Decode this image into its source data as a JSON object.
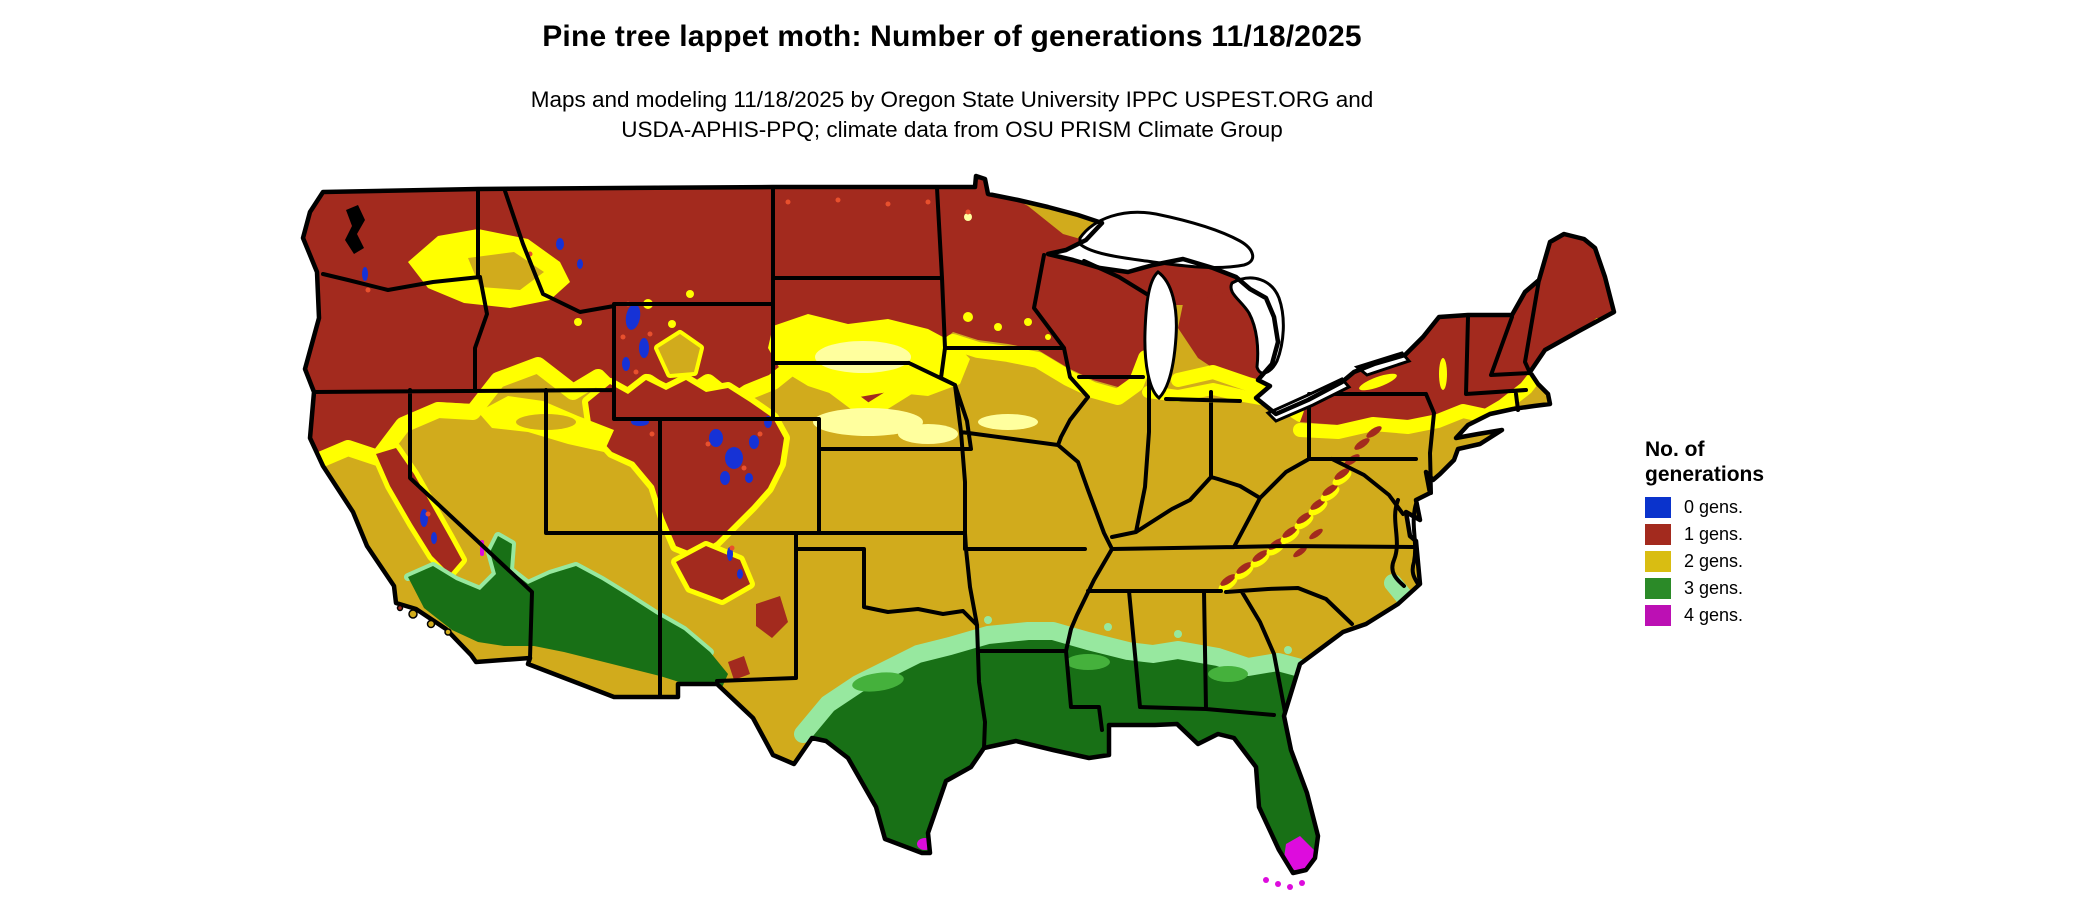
{
  "header": {
    "title": "Pine tree lappet moth: Number of generations 11/18/2025",
    "subtitle1": "Maps and modeling 11/18/2025 by Oregon State University IPPC USPEST.ORG and",
    "subtitle2": "USDA-APHIS-PPQ; climate data from OSU PRISM Climate Group"
  },
  "legend": {
    "title_line1": "No. of",
    "title_line2": "generations",
    "items": [
      {
        "label": "0 gens.",
        "color": "#0a33cc"
      },
      {
        "label": "1 gens.",
        "color": "#a32a1e"
      },
      {
        "label": "2 gens.",
        "color": "#d9bd12"
      },
      {
        "label": "3 gens.",
        "color": "#2b8a28"
      },
      {
        "label": "4 gens.",
        "color": "#bc10b4"
      }
    ]
  },
  "map": {
    "region_label": "Contiguous United States",
    "date_shown": "11/18/2025",
    "colors": {
      "gens0": "#1632d6",
      "gens1": "#a32a1e",
      "gens2": "#d1ab1c",
      "gens2_bright": "#ffff00",
      "gens2_pale": "#ffff9e",
      "gens3": "#187016",
      "gens3_light": "#97e89f",
      "gens3_mid": "#45b13c",
      "gens4": "#dd0cdd",
      "transition_orange": "#e8502d",
      "border": "#000000",
      "water": "#ffffff"
    }
  }
}
